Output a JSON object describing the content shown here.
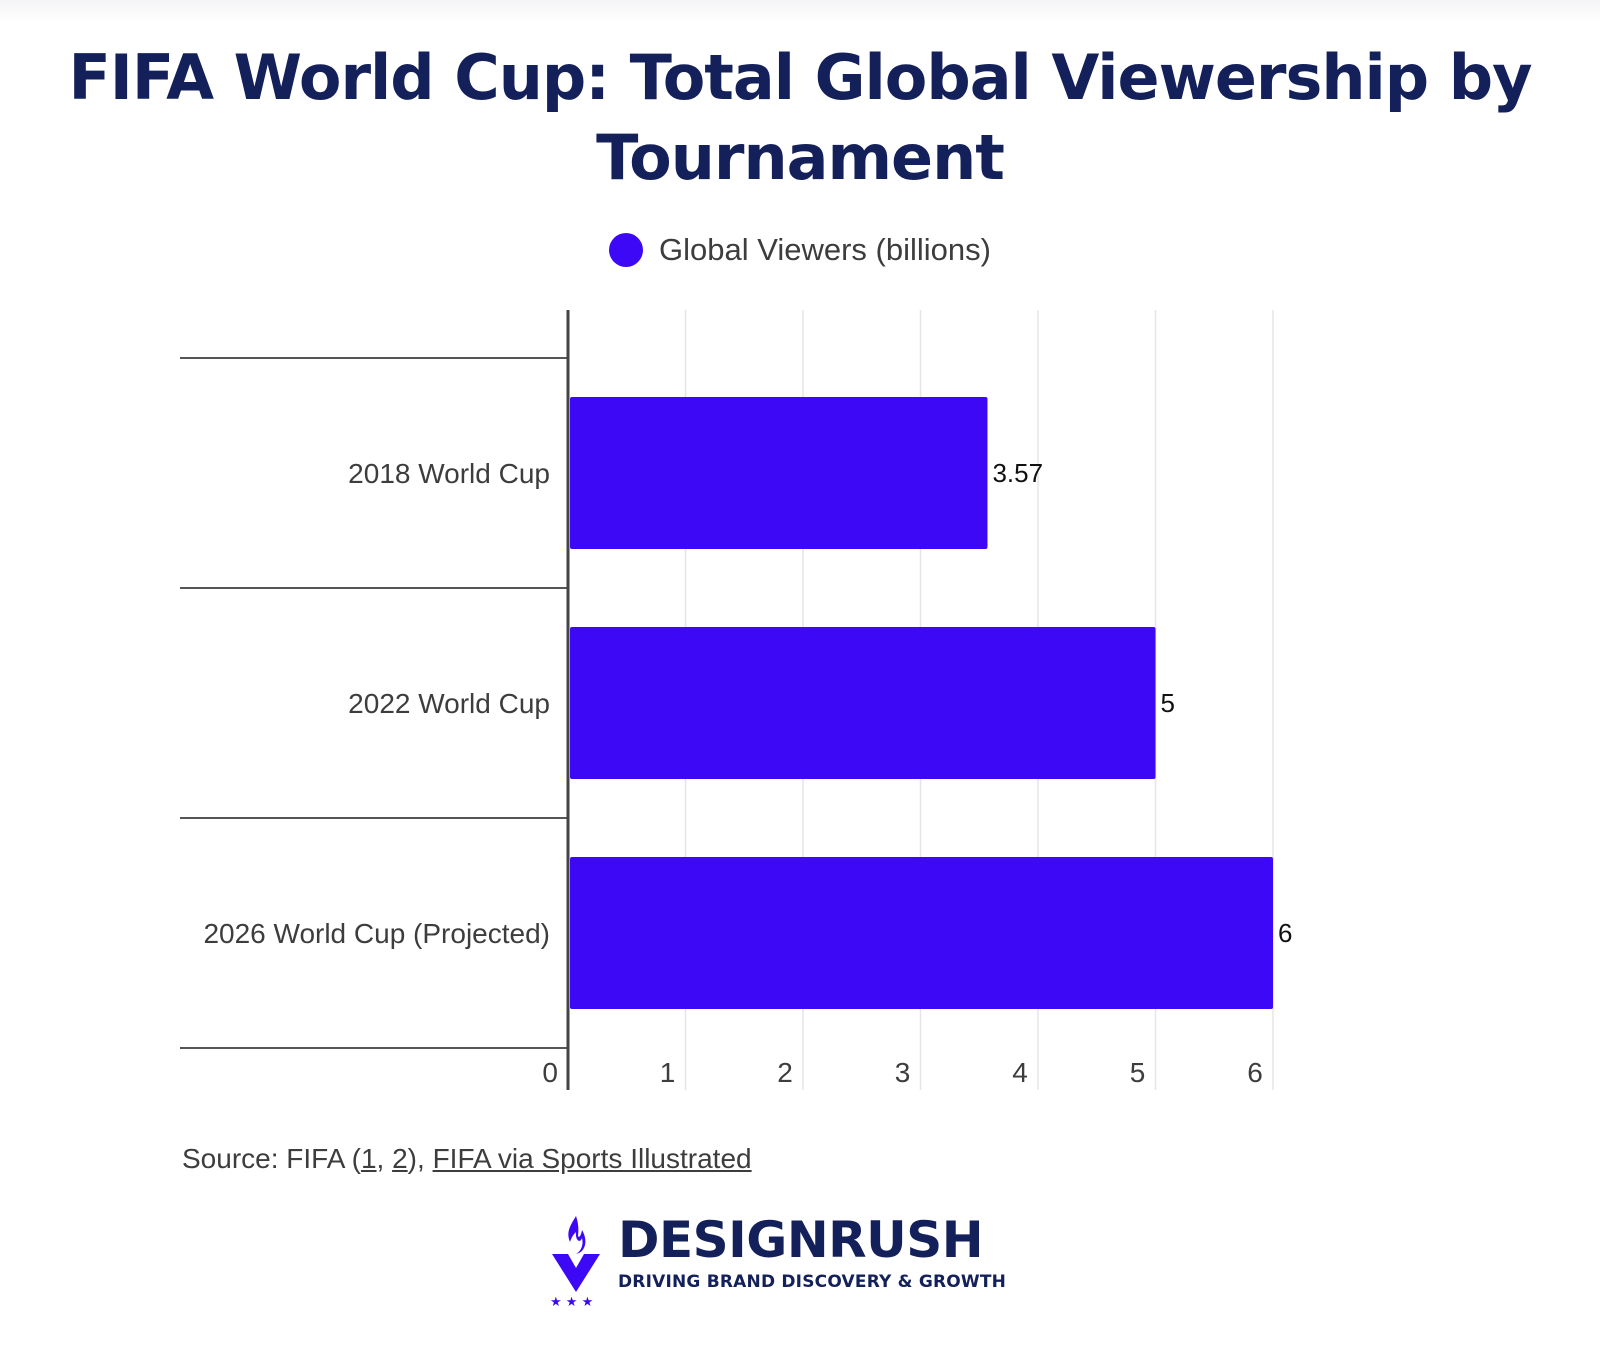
{
  "title": "FIFA World Cup: Total Global Viewership by Tournament",
  "chart_data": {
    "type": "bar",
    "orientation": "horizontal",
    "title": "FIFA World Cup: Total Global Viewership by Tournament",
    "categories": [
      "2018 World Cup",
      "2022 World Cup",
      "2026 World Cup (Projected)"
    ],
    "series": [
      {
        "name": "Global Viewers (billions)",
        "values": [
          3.57,
          5,
          6
        ],
        "color": "#3d08f5"
      }
    ],
    "data_labels": [
      "3.57",
      "5",
      "6"
    ],
    "xlim": [
      0,
      6
    ],
    "x_ticks": [
      0,
      1,
      2,
      3,
      4,
      5,
      6
    ],
    "xlabel": "",
    "ylabel": "",
    "legend_position": "top-center",
    "grid": true
  },
  "legend": {
    "label": "Global Viewers (billions)",
    "color": "#3d08f5"
  },
  "source": {
    "prefix": "Source: FIFA (",
    "link1": "1",
    "sep": ", ",
    "link2": "2",
    "mid": "), ",
    "link3": "FIFA via Sports Illustrated"
  },
  "brand": {
    "name": "DESIGNRUSH",
    "tagline": "DRIVING BRAND DISCOVERY & GROWTH"
  },
  "colors": {
    "title": "#14205a",
    "bar": "#3d08f5",
    "text": "#3d3d3d",
    "grid": "#e6e6e6",
    "axis": "#444444"
  }
}
